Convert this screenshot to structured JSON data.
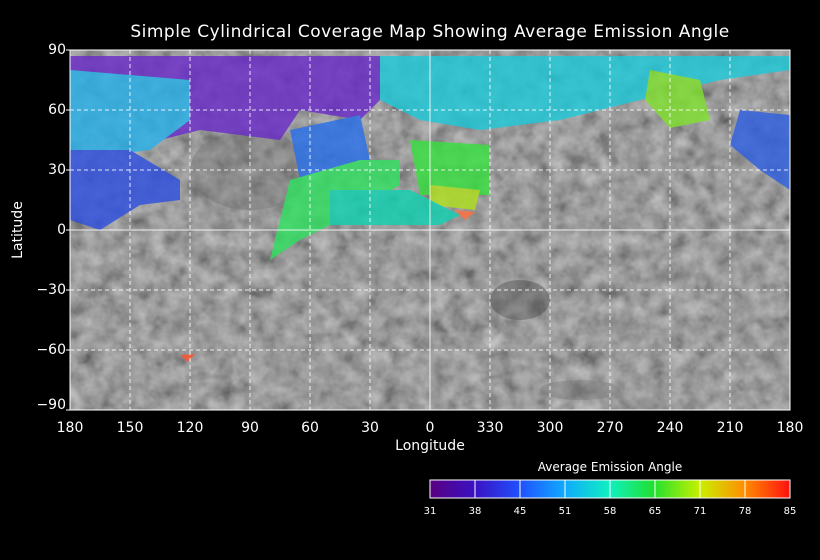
{
  "title": "Simple Cylindrical Coverage Map Showing Average Emission Angle",
  "axes": {
    "xlabel": "Longitude",
    "ylabel": "Latitude",
    "x_ticks": [
      "180",
      "150",
      "120",
      "90",
      "60",
      "30",
      "0",
      "330",
      "300",
      "270",
      "240",
      "210",
      "180"
    ],
    "y_ticks": [
      "90",
      "60",
      "30",
      "0",
      "−30",
      "−60",
      "−90"
    ]
  },
  "colorbar": {
    "title": "Average Emission Angle",
    "ticks": [
      "31",
      "38",
      "45",
      "51",
      "58",
      "65",
      "71",
      "78",
      "85"
    ]
  },
  "colors": {
    "background": "#000000",
    "grid": "#ffffff",
    "basemap": "#5a5a5a"
  }
}
